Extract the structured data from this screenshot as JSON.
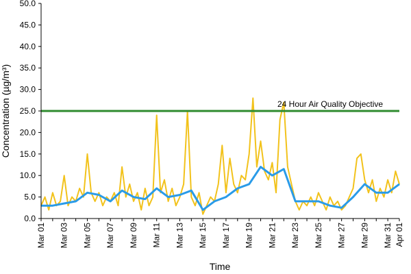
{
  "chart_data": {
    "type": "line",
    "title": "",
    "xlabel": "Time",
    "ylabel": "Concentration (µg/m³)",
    "ylim": [
      0,
      50
    ],
    "yticks": [
      "0.0",
      "5.0",
      "10.0",
      "15.0",
      "20.0",
      "25.0",
      "30.0",
      "35.0",
      "40.0",
      "45.0",
      "50.0"
    ],
    "xlim": [
      "2023-03-01",
      "2023-04-01"
    ],
    "xticks": [
      {
        "date": "2023-03-01",
        "label": "Mar 01"
      },
      {
        "date": "2023-03-03",
        "label": "Mar 03"
      },
      {
        "date": "2023-03-05",
        "label": "Mar 05"
      },
      {
        "date": "2023-03-07",
        "label": "Mar 07"
      },
      {
        "date": "2023-03-09",
        "label": "Mar 09"
      },
      {
        "date": "2023-03-11",
        "label": "Mar 11"
      },
      {
        "date": "2023-03-13",
        "label": "Mar 13"
      },
      {
        "date": "2023-03-15",
        "label": "Mar 15"
      },
      {
        "date": "2023-03-17",
        "label": "Mar 17"
      },
      {
        "date": "2023-03-19",
        "label": "Mar 19"
      },
      {
        "date": "2023-03-21",
        "label": "Mar 21"
      },
      {
        "date": "2023-03-23",
        "label": "Mar 23"
      },
      {
        "date": "2023-03-25",
        "label": "Mar 25"
      },
      {
        "date": "2023-03-27",
        "label": "Mar 27"
      },
      {
        "date": "2023-03-29",
        "label": "Mar 29"
      },
      {
        "date": "2023-03-31",
        "label": "Mar 31"
      },
      {
        "date": "2023-04-01",
        "label": "Apr 01"
      }
    ],
    "grid": false,
    "reference_line": {
      "value": 25.0,
      "label": "24 Hour Air Quality Objective",
      "color": "#2e8b2e"
    },
    "series": [
      {
        "color": "#f2c21b",
        "points": [
          [
            "2023-03-01 00:00",
            3
          ],
          [
            "2023-03-01 08:00",
            5
          ],
          [
            "2023-03-01 16:00",
            2
          ],
          [
            "2023-03-02 00:00",
            6
          ],
          [
            "2023-03-02 08:00",
            3
          ],
          [
            "2023-03-02 16:00",
            4
          ],
          [
            "2023-03-03 00:00",
            10
          ],
          [
            "2023-03-03 08:00",
            3
          ],
          [
            "2023-03-03 16:00",
            5
          ],
          [
            "2023-03-04 00:00",
            4
          ],
          [
            "2023-03-04 08:00",
            7
          ],
          [
            "2023-03-04 16:00",
            5
          ],
          [
            "2023-03-05 00:00",
            15
          ],
          [
            "2023-03-05 08:00",
            6
          ],
          [
            "2023-03-05 16:00",
            4
          ],
          [
            "2023-03-06 00:00",
            6
          ],
          [
            "2023-03-06 08:00",
            3
          ],
          [
            "2023-03-06 16:00",
            5
          ],
          [
            "2023-03-07 00:00",
            4
          ],
          [
            "2023-03-07 08:00",
            6
          ],
          [
            "2023-03-07 16:00",
            3
          ],
          [
            "2023-03-08 00:00",
            12
          ],
          [
            "2023-03-08 08:00",
            5
          ],
          [
            "2023-03-08 16:00",
            8
          ],
          [
            "2023-03-09 00:00",
            4
          ],
          [
            "2023-03-09 08:00",
            6
          ],
          [
            "2023-03-09 16:00",
            2
          ],
          [
            "2023-03-10 00:00",
            7
          ],
          [
            "2023-03-10 08:00",
            3
          ],
          [
            "2023-03-10 16:00",
            5
          ],
          [
            "2023-03-11 00:00",
            24
          ],
          [
            "2023-03-11 08:00",
            6
          ],
          [
            "2023-03-11 16:00",
            9
          ],
          [
            "2023-03-12 00:00",
            4
          ],
          [
            "2023-03-12 08:00",
            7
          ],
          [
            "2023-03-12 16:00",
            3
          ],
          [
            "2023-03-13 00:00",
            5
          ],
          [
            "2023-03-13 08:00",
            8
          ],
          [
            "2023-03-13 16:00",
            25
          ],
          [
            "2023-03-14 00:00",
            5
          ],
          [
            "2023-03-14 08:00",
            3
          ],
          [
            "2023-03-14 16:00",
            6
          ],
          [
            "2023-03-15 00:00",
            1
          ],
          [
            "2023-03-15 08:00",
            3
          ],
          [
            "2023-03-15 16:00",
            5
          ],
          [
            "2023-03-16 00:00",
            4
          ],
          [
            "2023-03-16 08:00",
            8
          ],
          [
            "2023-03-16 16:00",
            17
          ],
          [
            "2023-03-17 00:00",
            6
          ],
          [
            "2023-03-17 08:00",
            14
          ],
          [
            "2023-03-17 16:00",
            8
          ],
          [
            "2023-03-18 00:00",
            6
          ],
          [
            "2023-03-18 08:00",
            10
          ],
          [
            "2023-03-18 16:00",
            9
          ],
          [
            "2023-03-19 00:00",
            15
          ],
          [
            "2023-03-19 08:00",
            28
          ],
          [
            "2023-03-19 16:00",
            12
          ],
          [
            "2023-03-20 00:00",
            18
          ],
          [
            "2023-03-20 08:00",
            11
          ],
          [
            "2023-03-20 16:00",
            9
          ],
          [
            "2023-03-21 00:00",
            13
          ],
          [
            "2023-03-21 08:00",
            6
          ],
          [
            "2023-03-21 16:00",
            23
          ],
          [
            "2023-03-22 00:00",
            27
          ],
          [
            "2023-03-22 08:00",
            12
          ],
          [
            "2023-03-22 16:00",
            8
          ],
          [
            "2023-03-23 00:00",
            4
          ],
          [
            "2023-03-23 08:00",
            2
          ],
          [
            "2023-03-23 16:00",
            4
          ],
          [
            "2023-03-24 00:00",
            3
          ],
          [
            "2023-03-24 08:00",
            5
          ],
          [
            "2023-03-24 16:00",
            3
          ],
          [
            "2023-03-25 00:00",
            6
          ],
          [
            "2023-03-25 08:00",
            4
          ],
          [
            "2023-03-25 16:00",
            2
          ],
          [
            "2023-03-26 00:00",
            5
          ],
          [
            "2023-03-26 08:00",
            3
          ],
          [
            "2023-03-26 16:00",
            4
          ],
          [
            "2023-03-27 00:00",
            2
          ],
          [
            "2023-03-27 08:00",
            3
          ],
          [
            "2023-03-27 16:00",
            5
          ],
          [
            "2023-03-28 00:00",
            7
          ],
          [
            "2023-03-28 08:00",
            14
          ],
          [
            "2023-03-28 16:00",
            15
          ],
          [
            "2023-03-29 00:00",
            9
          ],
          [
            "2023-03-29 08:00",
            6
          ],
          [
            "2023-03-29 16:00",
            9
          ],
          [
            "2023-03-30 00:00",
            4
          ],
          [
            "2023-03-30 08:00",
            7
          ],
          [
            "2023-03-30 16:00",
            5
          ],
          [
            "2023-03-31 00:00",
            9
          ],
          [
            "2023-03-31 08:00",
            6
          ],
          [
            "2023-03-31 16:00",
            11
          ],
          [
            "2023-04-01 00:00",
            8
          ]
        ]
      },
      {
        "color": "#2a9be8",
        "points": [
          [
            "2023-03-01 00:00",
            3
          ],
          [
            "2023-03-02 00:00",
            3
          ],
          [
            "2023-03-03 00:00",
            3.5
          ],
          [
            "2023-03-04 00:00",
            4
          ],
          [
            "2023-03-05 00:00",
            6
          ],
          [
            "2023-03-06 00:00",
            5.5
          ],
          [
            "2023-03-07 00:00",
            4
          ],
          [
            "2023-03-08 00:00",
            6.5
          ],
          [
            "2023-03-09 00:00",
            5
          ],
          [
            "2023-03-10 00:00",
            4.5
          ],
          [
            "2023-03-11 00:00",
            7
          ],
          [
            "2023-03-12 00:00",
            5
          ],
          [
            "2023-03-13 00:00",
            5.5
          ],
          [
            "2023-03-14 00:00",
            6.5
          ],
          [
            "2023-03-15 00:00",
            2
          ],
          [
            "2023-03-16 00:00",
            4
          ],
          [
            "2023-03-17 00:00",
            5
          ],
          [
            "2023-03-18 00:00",
            7
          ],
          [
            "2023-03-19 00:00",
            8
          ],
          [
            "2023-03-20 00:00",
            12
          ],
          [
            "2023-03-21 00:00",
            10
          ],
          [
            "2023-03-22 00:00",
            11.5
          ],
          [
            "2023-03-23 00:00",
            4
          ],
          [
            "2023-03-24 00:00",
            4
          ],
          [
            "2023-03-25 00:00",
            4
          ],
          [
            "2023-03-26 00:00",
            3
          ],
          [
            "2023-03-27 00:00",
            2.5
          ],
          [
            "2023-03-28 00:00",
            5
          ],
          [
            "2023-03-29 00:00",
            8
          ],
          [
            "2023-03-30 00:00",
            6
          ],
          [
            "2023-03-31 00:00",
            6
          ],
          [
            "2023-04-01 00:00",
            8
          ]
        ]
      }
    ]
  }
}
